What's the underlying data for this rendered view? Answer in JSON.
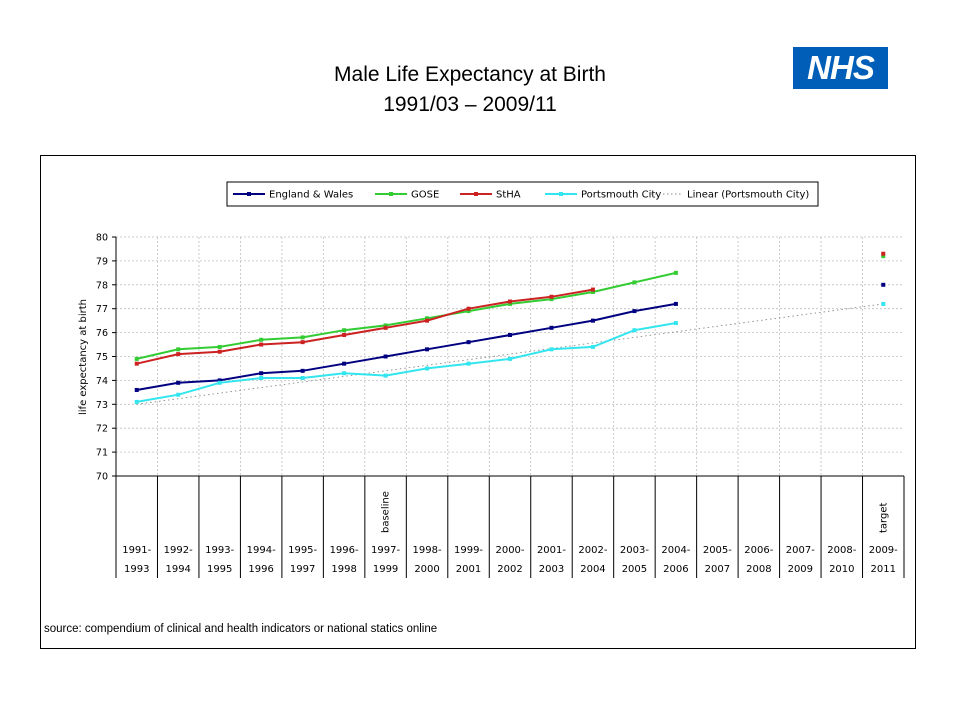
{
  "title_line1": "Male Life Expectancy at Birth",
  "title_line2": "1991/03 – 2009/11",
  "logo_text": "NHS",
  "source": "source: compendium of clinical and health indicators or national statics online",
  "chart_data": {
    "type": "line",
    "ylabel": "life expectancy at birth",
    "ylim": [
      70,
      80
    ],
    "yticks": [
      70,
      71,
      72,
      73,
      74,
      75,
      76,
      77,
      78,
      79,
      80
    ],
    "categories_top": [
      "1991-",
      "1992-",
      "1993-",
      "1994-",
      "1995-",
      "1996-",
      "1997-",
      "1998-",
      "1999-",
      "2000-",
      "2001-",
      "2002-",
      "2003-",
      "2004-",
      "2005-",
      "2006-",
      "2007-",
      "2008-",
      "2009-"
    ],
    "categories_bottom": [
      "1993",
      "1994",
      "1995",
      "1996",
      "1997",
      "1998",
      "1999",
      "2000",
      "2001",
      "2002",
      "2003",
      "2004",
      "2005",
      "2006",
      "2007",
      "2008",
      "2009",
      "2010",
      "2011"
    ],
    "annotations": [
      {
        "category_index": 6,
        "text": "baseline"
      },
      {
        "category_index": 18,
        "text": "target"
      }
    ],
    "legend_position": "top",
    "series": [
      {
        "name": "England & Wales",
        "color": "#000080",
        "values": [
          73.6,
          73.9,
          74.0,
          74.3,
          74.4,
          74.7,
          75.0,
          75.3,
          75.6,
          75.9,
          76.2,
          76.5,
          76.9,
          77.2,
          null,
          null,
          null,
          null,
          78.0
        ]
      },
      {
        "name": "GOSE",
        "color": "#33cc33",
        "values": [
          74.9,
          75.3,
          75.4,
          75.7,
          75.8,
          76.1,
          76.3,
          76.6,
          76.9,
          77.2,
          77.4,
          77.7,
          78.1,
          78.5,
          null,
          null,
          null,
          null,
          79.2
        ]
      },
      {
        "name": "StHA",
        "color": "#cc2222",
        "values": [
          74.7,
          75.1,
          75.2,
          75.5,
          75.6,
          75.9,
          76.2,
          76.5,
          77.0,
          77.3,
          77.5,
          77.8,
          null,
          null,
          null,
          null,
          null,
          null,
          79.3
        ]
      },
      {
        "name": "Portsmouth City",
        "color": "#33e5ee",
        "values": [
          73.1,
          73.4,
          73.9,
          74.1,
          74.1,
          74.3,
          74.2,
          74.5,
          74.7,
          74.9,
          75.3,
          75.4,
          76.1,
          76.4,
          null,
          null,
          null,
          null,
          77.2
        ]
      }
    ],
    "trendline": {
      "name": "Linear (Portsmouth City)",
      "color": "#888888",
      "style": "dotted",
      "start": 73.0,
      "end": 77.2
    }
  }
}
